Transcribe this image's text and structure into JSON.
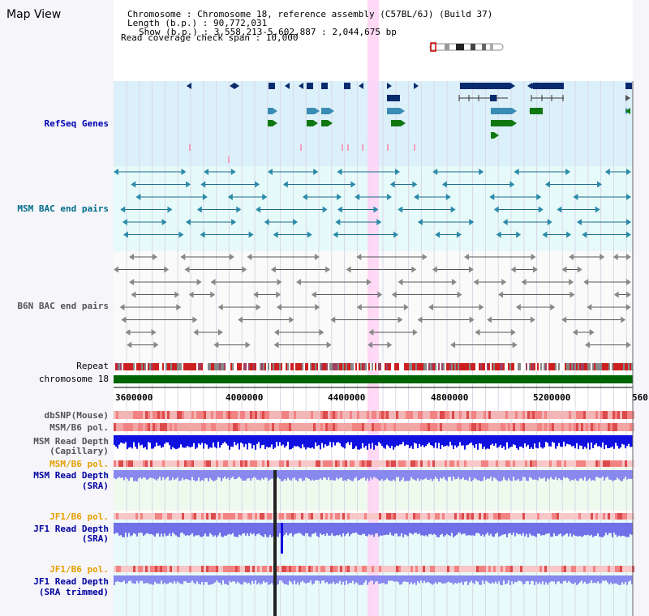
{
  "map_title": "Map View",
  "header": {
    "lines": [
      "Chromosome     : Chromosome 18, reference assembly (C57BL/6J) (Build 37)",
      "Length (b.p.) : 90,772,031",
      "Show (b.p.) : 3,558,213-5,602,887 : 2,044,675 bp",
      "Read coverage check span : 10,000"
    ]
  },
  "tracks": {
    "refseq": "RefSeq Genes",
    "msm_bac": "MSM BAC end pairs",
    "b6n_bac": "B6N BAC end pairs",
    "repeat": "Repeat",
    "chromosome": "chromosome 18",
    "dbsnp": "dbSNP(Mouse)",
    "msm_b6_pol_1": "MSM/B6 pol.",
    "msm_depth_cap_1": "MSM Read Depth",
    "msm_depth_cap_2": "(Capillary)",
    "msm_b6_pol_2": "MSM/B6 pol.",
    "msm_depth_sra_1": "MSM Read Depth",
    "msm_depth_sra_2": "(SRA)",
    "jf1_pol_1": "JF1/B6 pol.",
    "jf1_depth_sra_1": "JF1 Read Depth",
    "jf1_depth_sra_2": "(SRA)",
    "jf1_pol_2": "JF1/B6 pol.",
    "jf1_depth_trim_1": "JF1 Read Depth",
    "jf1_depth_trim_2": "(SRA trimmed)"
  },
  "axis": {
    "ticks": [
      "3600000",
      "4000000",
      "4400000",
      "4800000",
      "5200000",
      "560"
    ]
  },
  "colors": {
    "refseq_bg": "#dcf0fa",
    "bac_bg": "#e6fafa",
    "refseq_label": "#0000b4",
    "msm_label": "#006c8a",
    "b6n_label": "#555555",
    "pol_label": "#e6a000",
    "depth_label": "#0000a0",
    "highlight": "#ffd2f5",
    "chromosome_bar": "#006400",
    "gene_dark": "#0a2a6e",
    "gene_mid": "#3a8cb4",
    "gene_green": "#107810"
  }
}
